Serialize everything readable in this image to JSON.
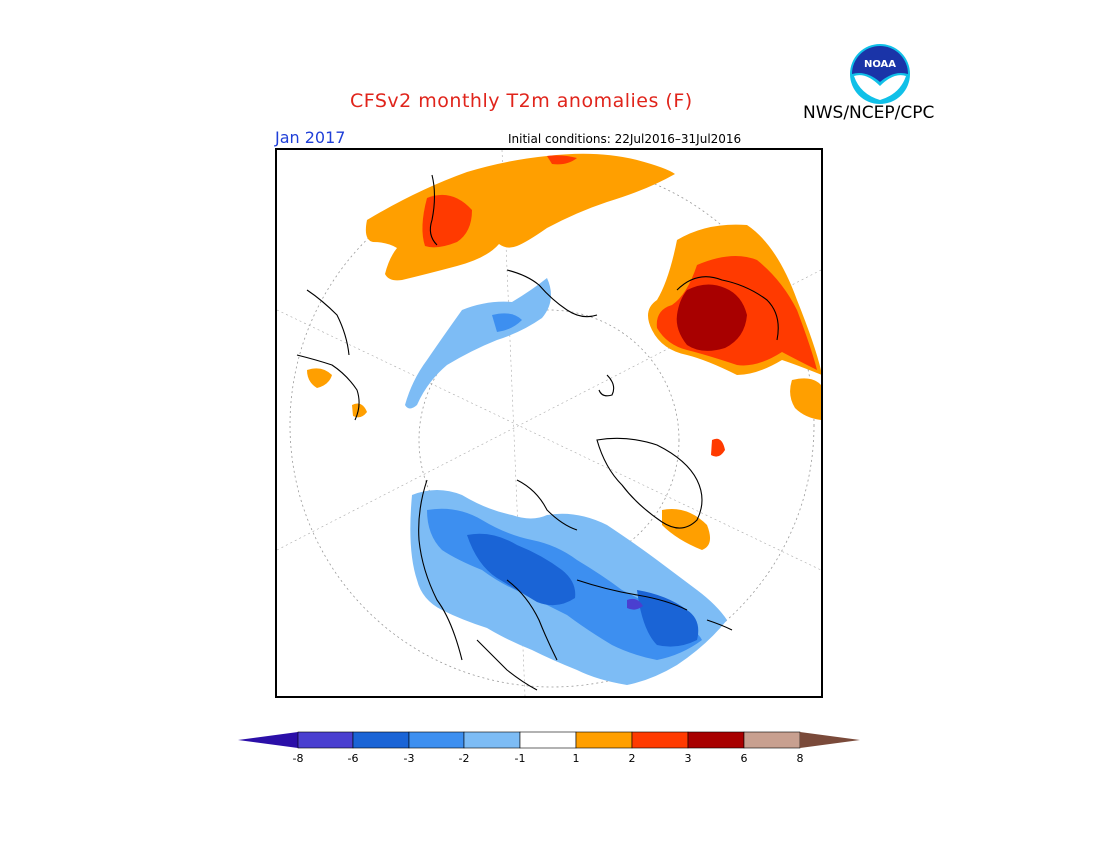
{
  "header": {
    "title": "CFSv2 monthly T2m anomalies (F)",
    "month": "Jan 2017",
    "initial_conditions": "Initial conditions: 22Jul2016–31Jul2016",
    "agency": "NWS/NCEP/CPC",
    "logo_text": "NOAA"
  },
  "map": {
    "projection": "north polar stereographic",
    "variable": "2-meter temperature anomaly"
  },
  "colorbar": {
    "ticks": [
      "-8",
      "-6",
      "-3",
      "-2",
      "-1",
      "1",
      "2",
      "3",
      "6",
      "8"
    ],
    "colors": [
      "#2b0fa8",
      "#4a3fd0",
      "#1a64d6",
      "#3d8ff0",
      "#7dbcf5",
      "#ffffff",
      "#ff9f00",
      "#ff3a00",
      "#a80000",
      "#c8a090",
      "#7a4a3a"
    ]
  }
}
